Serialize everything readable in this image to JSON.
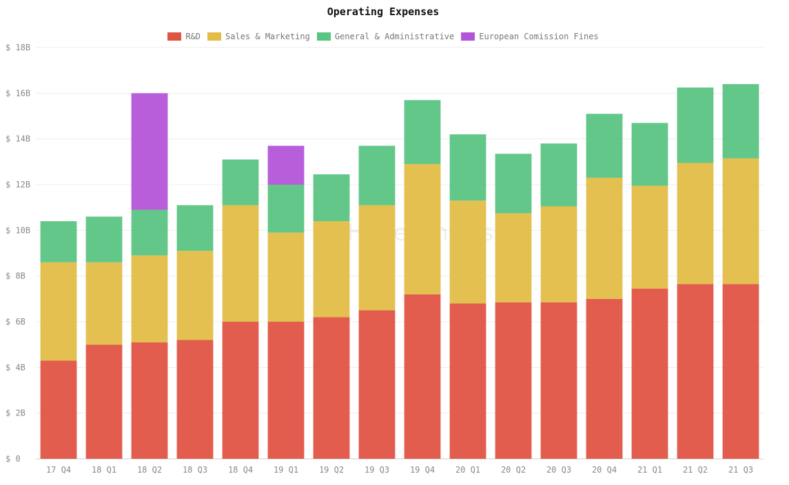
{
  "chart_data": {
    "type": "bar",
    "stacked": true,
    "title": "Operating Expenses",
    "watermark": "HyperCharts",
    "legend_position": "top-center",
    "grid": true,
    "ylim": [
      0,
      18
    ],
    "y_ticks": [
      0,
      2,
      4,
      6,
      8,
      10,
      12,
      14,
      16,
      18
    ],
    "y_tick_labels": [
      "$ 0",
      "$ 2B",
      "$ 4B",
      "$ 6B",
      "$ 8B",
      "$ 10B",
      "$ 12B",
      "$ 14B",
      "$ 16B",
      "$ 18B"
    ],
    "categories": [
      "17 Q4",
      "18 Q1",
      "18 Q2",
      "18 Q3",
      "18 Q4",
      "19 Q1",
      "19 Q2",
      "19 Q3",
      "19 Q4",
      "20 Q1",
      "20 Q2",
      "20 Q3",
      "20 Q4",
      "21 Q1",
      "21 Q2",
      "21 Q3"
    ],
    "series": [
      {
        "name": "R&D",
        "color": "#e05444",
        "values": [
          4.3,
          5.0,
          5.1,
          5.2,
          6.0,
          6.0,
          6.2,
          6.5,
          7.2,
          6.8,
          6.85,
          6.85,
          7.0,
          7.45,
          7.65,
          7.65
        ]
      },
      {
        "name": "Sales & Marketing",
        "color": "#e2bd46",
        "values": [
          4.3,
          3.6,
          3.8,
          3.9,
          5.1,
          3.9,
          4.2,
          4.6,
          5.7,
          4.5,
          3.9,
          4.2,
          5.3,
          4.5,
          5.3,
          5.5
        ]
      },
      {
        "name": "General & Administrative",
        "color": "#5ac482",
        "values": [
          1.8,
          2.0,
          2.0,
          2.0,
          2.0,
          2.1,
          2.05,
          2.6,
          2.8,
          2.9,
          2.6,
          2.75,
          2.8,
          2.75,
          3.3,
          3.25
        ]
      },
      {
        "name": "European Comission Fines",
        "color": "#b455d8",
        "values": [
          0,
          0,
          5.1,
          0,
          0,
          1.7,
          0,
          0,
          0,
          0,
          0,
          0,
          0,
          0,
          0,
          0
        ]
      }
    ]
  }
}
